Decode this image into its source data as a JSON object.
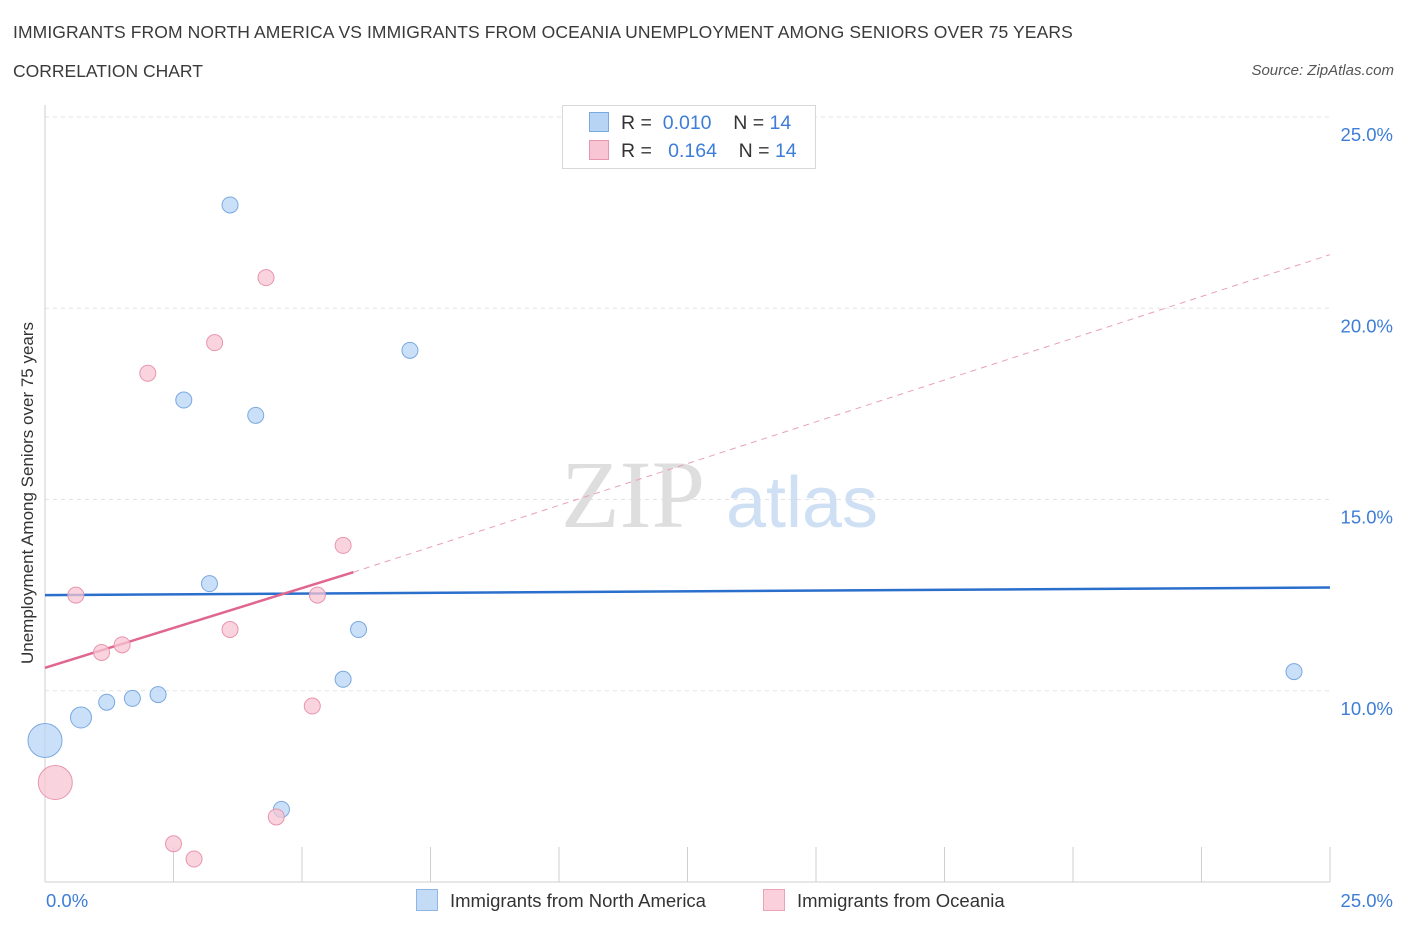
{
  "header": {
    "title": "IMMIGRANTS FROM NORTH AMERICA VS IMMIGRANTS FROM OCEANIA UNEMPLOYMENT AMONG SENIORS OVER 75 YEARS",
    "subtitle": "CORRELATION CHART",
    "source": "Source: ZipAtlas.com"
  },
  "legend": {
    "series1": {
      "r_label": "R =",
      "r_value": "0.010",
      "n_label": "N =",
      "n_value": "14"
    },
    "series2": {
      "r_label": "R =",
      "r_value": "0.164",
      "n_label": "N =",
      "n_value": "14"
    }
  },
  "bottom_legend": {
    "series1": "Immigrants from North America",
    "series2": "Immigrants from Oceania"
  },
  "watermark": {
    "zip": "ZIP",
    "atlas": "atlas"
  },
  "colors": {
    "blue_fill": "#b8d4f5",
    "blue_stroke": "#7aa8e0",
    "blue_line": "#2b6fcc",
    "pink_fill": "#f7c5d3",
    "pink_stroke": "#e895ae",
    "pink_line": "#e06690",
    "tick_text": "#3d7dd8",
    "grid": "#e3e3e3"
  },
  "chart_data": {
    "type": "scatter",
    "title": "IMMIGRANTS FROM NORTH AMERICA VS IMMIGRANTS FROM OCEANIA UNEMPLOYMENT AMONG SENIORS OVER 75 YEARS",
    "xlabel": "",
    "ylabel": "Unemployment Among Seniors over 75 years",
    "xlim": [
      0,
      25
    ],
    "ylim": [
      5,
      25
    ],
    "x_tick_labels": [
      {
        "value": 0,
        "label": "0.0%"
      },
      {
        "value": 25,
        "label": "25.0%"
      }
    ],
    "y_tick_labels": [
      {
        "value": 25,
        "label": "25.0%"
      },
      {
        "value": 20,
        "label": "20.0%"
      },
      {
        "value": 15,
        "label": "15.0%"
      },
      {
        "value": 10,
        "label": "10.0%"
      }
    ],
    "series": [
      {
        "name": "Immigrants from North America",
        "color": "blue",
        "R": 0.01,
        "N": 14,
        "points": [
          {
            "x": 0.0,
            "y": 8.7,
            "size": "large"
          },
          {
            "x": 0.7,
            "y": 9.3,
            "size": "medium"
          },
          {
            "x": 1.2,
            "y": 9.7,
            "size": "small"
          },
          {
            "x": 1.7,
            "y": 9.8,
            "size": "small"
          },
          {
            "x": 2.2,
            "y": 9.9,
            "size": "small"
          },
          {
            "x": 2.7,
            "y": 17.6,
            "size": "small"
          },
          {
            "x": 3.6,
            "y": 22.7,
            "size": "small"
          },
          {
            "x": 3.2,
            "y": 12.8,
            "size": "small"
          },
          {
            "x": 4.1,
            "y": 17.2,
            "size": "small"
          },
          {
            "x": 4.6,
            "y": 6.9,
            "size": "small"
          },
          {
            "x": 5.8,
            "y": 10.3,
            "size": "small"
          },
          {
            "x": 6.1,
            "y": 11.6,
            "size": "small"
          },
          {
            "x": 7.1,
            "y": 18.9,
            "size": "small"
          },
          {
            "x": 24.3,
            "y": 10.5,
            "size": "small"
          }
        ],
        "trend": {
          "x": [
            0,
            25
          ],
          "y": [
            12.5,
            12.7
          ],
          "style": "solid"
        }
      },
      {
        "name": "Immigrants from Oceania",
        "color": "pink",
        "R": 0.164,
        "N": 14,
        "points": [
          {
            "x": 0.2,
            "y": 7.6,
            "size": "large"
          },
          {
            "x": 0.6,
            "y": 12.5,
            "size": "small"
          },
          {
            "x": 1.1,
            "y": 11.0,
            "size": "small"
          },
          {
            "x": 1.5,
            "y": 11.2,
            "size": "small"
          },
          {
            "x": 2.0,
            "y": 18.3,
            "size": "small"
          },
          {
            "x": 2.5,
            "y": 6.0,
            "size": "small"
          },
          {
            "x": 2.9,
            "y": 5.6,
            "size": "small"
          },
          {
            "x": 3.3,
            "y": 19.1,
            "size": "small"
          },
          {
            "x": 3.6,
            "y": 11.6,
            "size": "small"
          },
          {
            "x": 4.3,
            "y": 20.8,
            "size": "small"
          },
          {
            "x": 4.5,
            "y": 6.7,
            "size": "small"
          },
          {
            "x": 5.2,
            "y": 9.6,
            "size": "small"
          },
          {
            "x": 5.3,
            "y": 12.5,
            "size": "small"
          },
          {
            "x": 5.8,
            "y": 13.8,
            "size": "small"
          }
        ],
        "trend": {
          "x": [
            0,
            6.0
          ],
          "y": [
            10.6,
            13.1
          ],
          "style": "solid"
        },
        "trend_extension": {
          "x": [
            6.0,
            25
          ],
          "y": [
            13.1,
            21.4
          ],
          "style": "dashed"
        }
      }
    ]
  }
}
